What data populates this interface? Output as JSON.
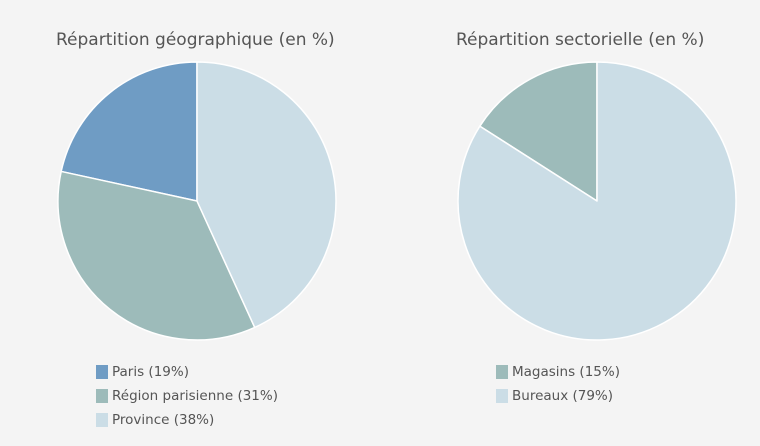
{
  "chart_data": [
    {
      "type": "pie",
      "title": "Répartition géographique (en %)",
      "slices": [
        {
          "label": "Paris",
          "value": 19,
          "legend": "Paris (19%)",
          "color": "#6f9cc4"
        },
        {
          "label": "Région parisienne",
          "value": 31,
          "legend": "Région parisienne (31%)",
          "color": "#9dbbba"
        },
        {
          "label": "Province",
          "value": 38,
          "legend": "Province (38%)",
          "color": "#cbdde6"
        }
      ],
      "legend_position": "bottom"
    },
    {
      "type": "pie",
      "title": "Répartition sectorielle (en %)",
      "slices": [
        {
          "label": "Magasins",
          "value": 15,
          "legend": "Magasins (15%)",
          "color": "#9dbbba"
        },
        {
          "label": "Bureaux",
          "value": 79,
          "legend": "Bureaux (79%)",
          "color": "#cbdde6"
        }
      ],
      "legend_position": "bottom"
    }
  ]
}
